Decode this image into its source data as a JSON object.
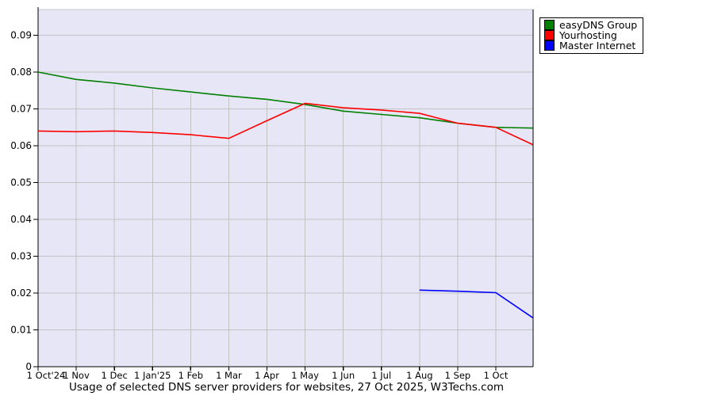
{
  "title": "Usage of selected DNS server providers for websites, 27 Oct 2025, W3Techs.com",
  "chart_data": {
    "type": "line",
    "title": "Usage of selected DNS server providers for websites, 27 Oct 2025, W3Techs.com",
    "x_tick_labels": [
      "1 Oct'24",
      "1 Nov",
      "1 Dec",
      "1 Jan'25",
      "1 Feb",
      "1 Mar",
      "1 Apr",
      "1 May",
      "1 Jun",
      "1 Jul",
      "1 Aug",
      "1 Sep",
      "1 Oct"
    ],
    "x_point_labels": [
      "1 Oct'24",
      "1 Nov'24",
      "1 Dec'24",
      "1 Jan'25",
      "1 Feb'25",
      "1 Mar'25",
      "1 Apr'25",
      "1 May'25",
      "1 Jun'25",
      "1 Jul'25",
      "1 Aug'25",
      "1 Sep'25",
      "1 Oct'25",
      "27 Oct'25"
    ],
    "x_months": [
      0,
      1,
      2,
      3,
      4,
      5,
      6,
      7,
      8,
      9,
      10,
      11,
      12,
      12.97
    ],
    "y_tick_labels": [
      "0",
      "0.01",
      "0.02",
      "0.03",
      "0.04",
      "0.05",
      "0.06",
      "0.07",
      "0.08",
      "0.09"
    ],
    "y_tick_values": [
      0,
      0.01,
      0.02,
      0.03,
      0.04,
      0.05,
      0.06,
      0.07,
      0.08,
      0.09
    ],
    "ylim": [
      0,
      0.097
    ],
    "grid": true,
    "legend_position": "outside-top-right",
    "colors": {
      "plot_bg": "#e6e6f6",
      "grid": "#c2c2c2",
      "top_border": "#c9c9cf",
      "axis": "#000000",
      "text": "#000000"
    },
    "series": [
      {
        "name": "easyDNS Group",
        "color": "#008000",
        "values": [
          0.08,
          0.078,
          0.077,
          0.0757,
          0.0746,
          0.0735,
          0.0726,
          0.0712,
          0.0694,
          0.0685,
          0.0676,
          0.0661,
          0.065,
          0.0648
        ]
      },
      {
        "name": "Yourhosting",
        "color": "#ff0000",
        "values": [
          0.064,
          0.0638,
          0.064,
          0.0636,
          0.063,
          0.062,
          0.0668,
          0.0715,
          0.0703,
          0.0697,
          0.0688,
          0.0661,
          0.065,
          0.0603
        ]
      },
      {
        "name": "Master Internet",
        "color": "#0000ff",
        "values": [
          null,
          null,
          null,
          null,
          null,
          null,
          null,
          null,
          null,
          null,
          0.0208,
          0.0205,
          0.0201,
          0.0133
        ]
      }
    ]
  }
}
